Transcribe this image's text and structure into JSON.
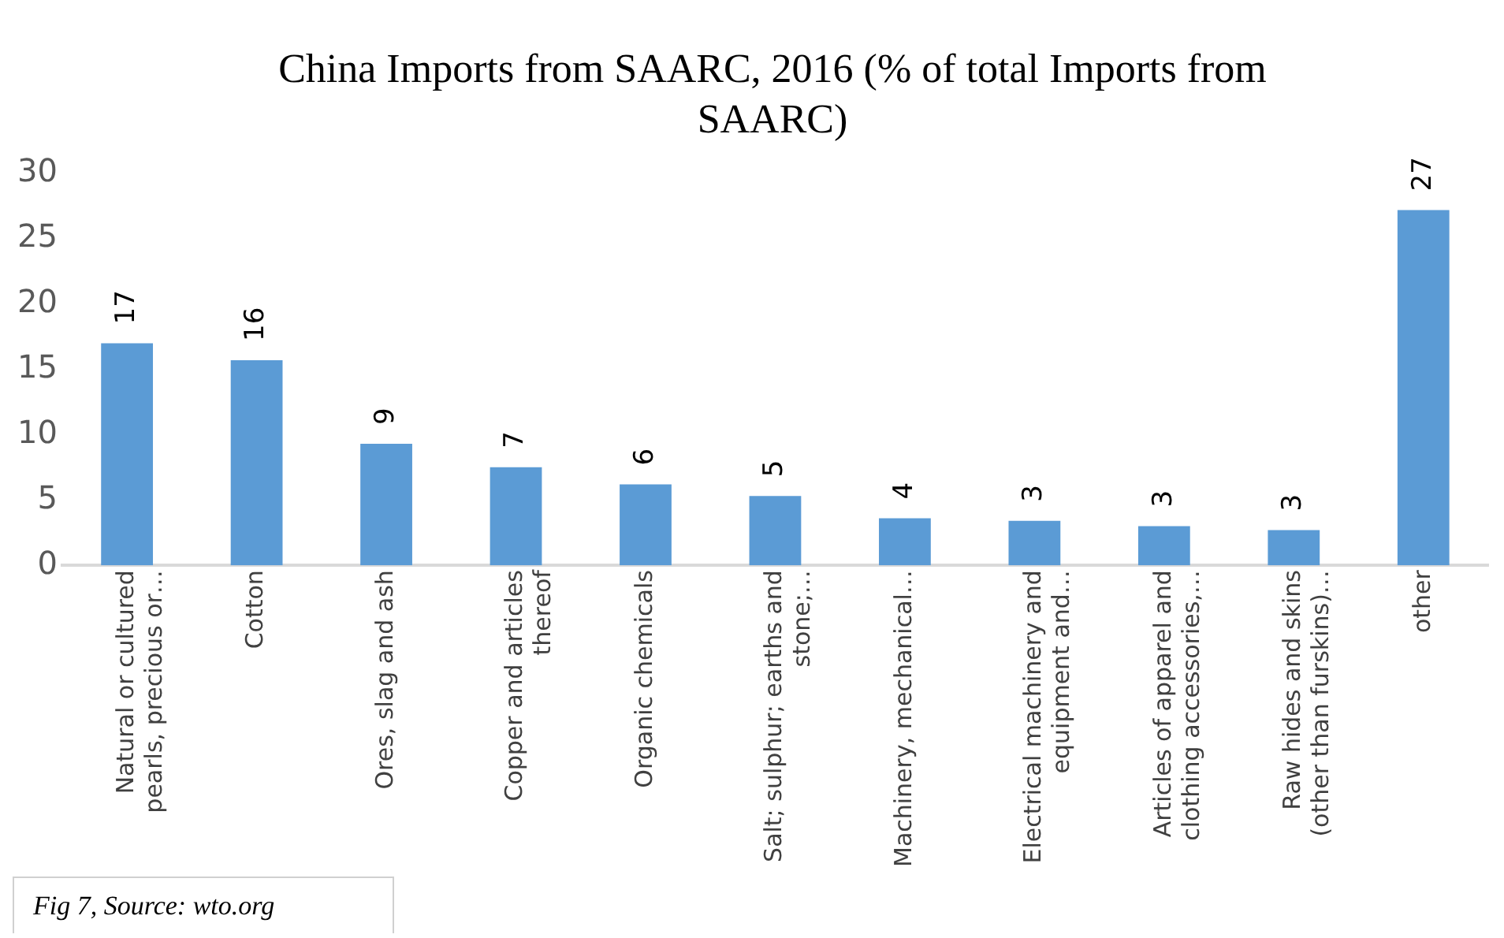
{
  "chart_data": {
    "type": "bar",
    "title": "China Imports from SAARC, 2016 (% of total Imports from SAARC)",
    "categories": [
      "Natural or cultured pearls, precious or…",
      "Cotton",
      "Ores, slag and ash",
      "Copper and articles thereof",
      "Organic chemicals",
      "Salt; sulphur; earths and stone;…",
      "Machinery, mechanical…",
      "Electrical machinery and equipment and…",
      "Articles of apparel and clothing accessories,…",
      "Raw hides and skins (other than furskins)…",
      "other"
    ],
    "values": [
      17.0,
      15.7,
      9.3,
      7.5,
      6.2,
      5.3,
      3.6,
      3.4,
      3.0,
      2.7,
      27.2
    ],
    "value_labels": [
      "17",
      "16",
      "9",
      "7",
      "6",
      "5",
      "4",
      "3",
      "3",
      "3",
      "27"
    ],
    "color": "#5b9bd5",
    "ylim": [
      0,
      30
    ],
    "yticks": [
      0,
      5,
      10,
      15,
      20,
      25,
      30
    ],
    "grid": false,
    "legend": false,
    "annotations": [
      "Fig 7, Source: wto.org"
    ]
  }
}
